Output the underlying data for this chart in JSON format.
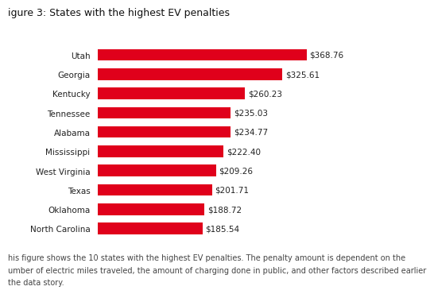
{
  "title": "igure 3: States with the highest EV penalties",
  "title_bold": ": States with the highest EV penalties",
  "title_prefix": "igure 3",
  "states": [
    "Utah",
    "Georgia",
    "Kentucky",
    "Tennessee",
    "Alabama",
    "Mississippi",
    "West Virginia",
    "Texas",
    "Oklahoma",
    "North Carolina"
  ],
  "values": [
    368.76,
    325.61,
    260.23,
    235.03,
    234.77,
    222.4,
    209.26,
    201.71,
    188.72,
    185.54
  ],
  "labels": [
    "$368.76",
    "$325.61",
    "$260.23",
    "$235.03",
    "$234.77",
    "$222.40",
    "$209.26",
    "$201.71",
    "$188.72",
    "$185.54"
  ],
  "bar_color": "#e0001b",
  "background_color": "#ffffff",
  "caption_line1": "his figure shows the 10 states with the highest EV penalties. The penalty amount is dependent on the",
  "caption_line2": "umber of electric miles traveled, the amount of charging done in public, and other factors described earlier",
  "caption_line3": "the data story.",
  "title_fontsize": 9,
  "label_fontsize": 7.5,
  "bar_label_fontsize": 7.5,
  "caption_fontsize": 7,
  "xlim": [
    0,
    420
  ],
  "bar_height": 0.6
}
